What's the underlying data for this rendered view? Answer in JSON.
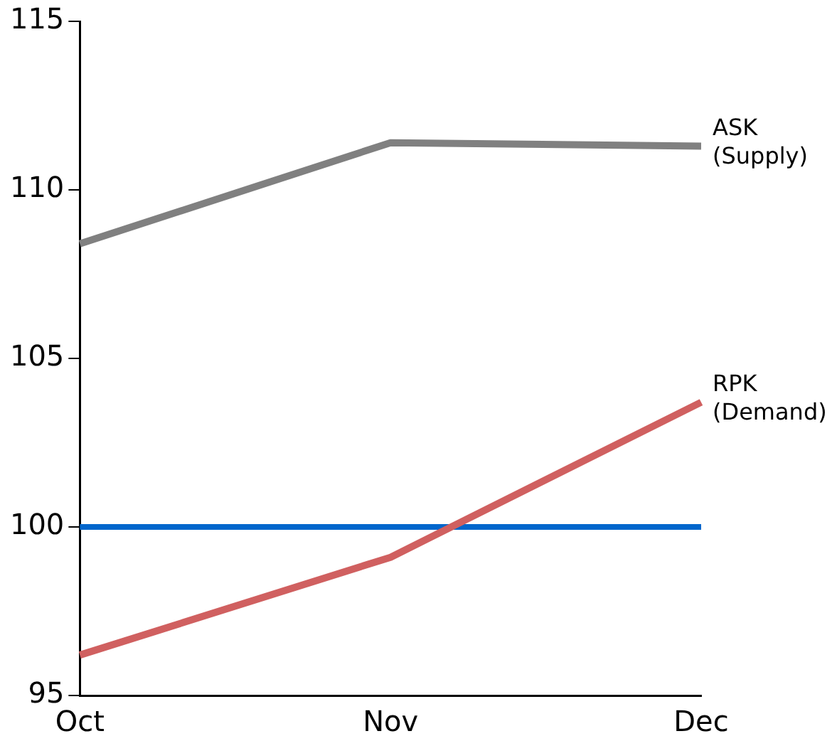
{
  "chart_data": {
    "type": "line",
    "categories": [
      "Oct",
      "Nov",
      "Dec"
    ],
    "series": [
      {
        "name": "ASK\n(Supply)",
        "color": "#808080",
        "values": [
          108.4,
          111.4,
          111.3
        ]
      },
      {
        "name": "RPK\n(Demand)",
        "color": "#d06060",
        "values": [
          96.2,
          99.1,
          103.7
        ]
      }
    ],
    "ylim": [
      95,
      115
    ],
    "yticks": [
      95,
      100,
      105,
      110,
      115
    ],
    "ref_lines": [
      {
        "axis": "y",
        "value": 100,
        "color": "#0066cc"
      }
    ],
    "grid": false,
    "legend": false,
    "marker": "none",
    "line_style": "solid"
  }
}
